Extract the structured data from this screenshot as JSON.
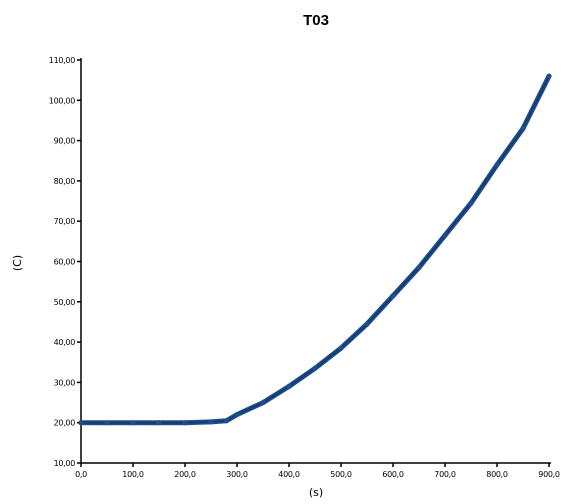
{
  "chart_data": {
    "type": "line",
    "title": "T03",
    "xlabel": "(s)",
    "ylabel": "(C)",
    "xlim": [
      0,
      900
    ],
    "ylim": [
      10,
      110
    ],
    "x_ticks": [
      "0,0",
      "100,0",
      "200,0",
      "300,0",
      "400,0",
      "500,0",
      "600,0",
      "700,0",
      "800,0",
      "900,0"
    ],
    "y_ticks": [
      "10,00",
      "20,00",
      "30,00",
      "40,00",
      "50,00",
      "60,00",
      "70,00",
      "80,00",
      "90,00",
      "100,00",
      "110,00"
    ],
    "grid": false,
    "legend": "none",
    "color": "#1f4e8c",
    "series": [
      {
        "x": [
          0,
          50,
          100,
          150,
          200,
          250,
          280,
          300,
          350,
          400,
          450,
          500,
          550,
          600,
          650,
          700,
          750,
          800,
          850,
          900
        ],
        "y": [
          20,
          20,
          20,
          20,
          20,
          20.2,
          20.5,
          22,
          25,
          29,
          33.5,
          38.5,
          44.5,
          51.5,
          58.5,
          66.5,
          74.5,
          84,
          93,
          106
        ]
      }
    ]
  }
}
